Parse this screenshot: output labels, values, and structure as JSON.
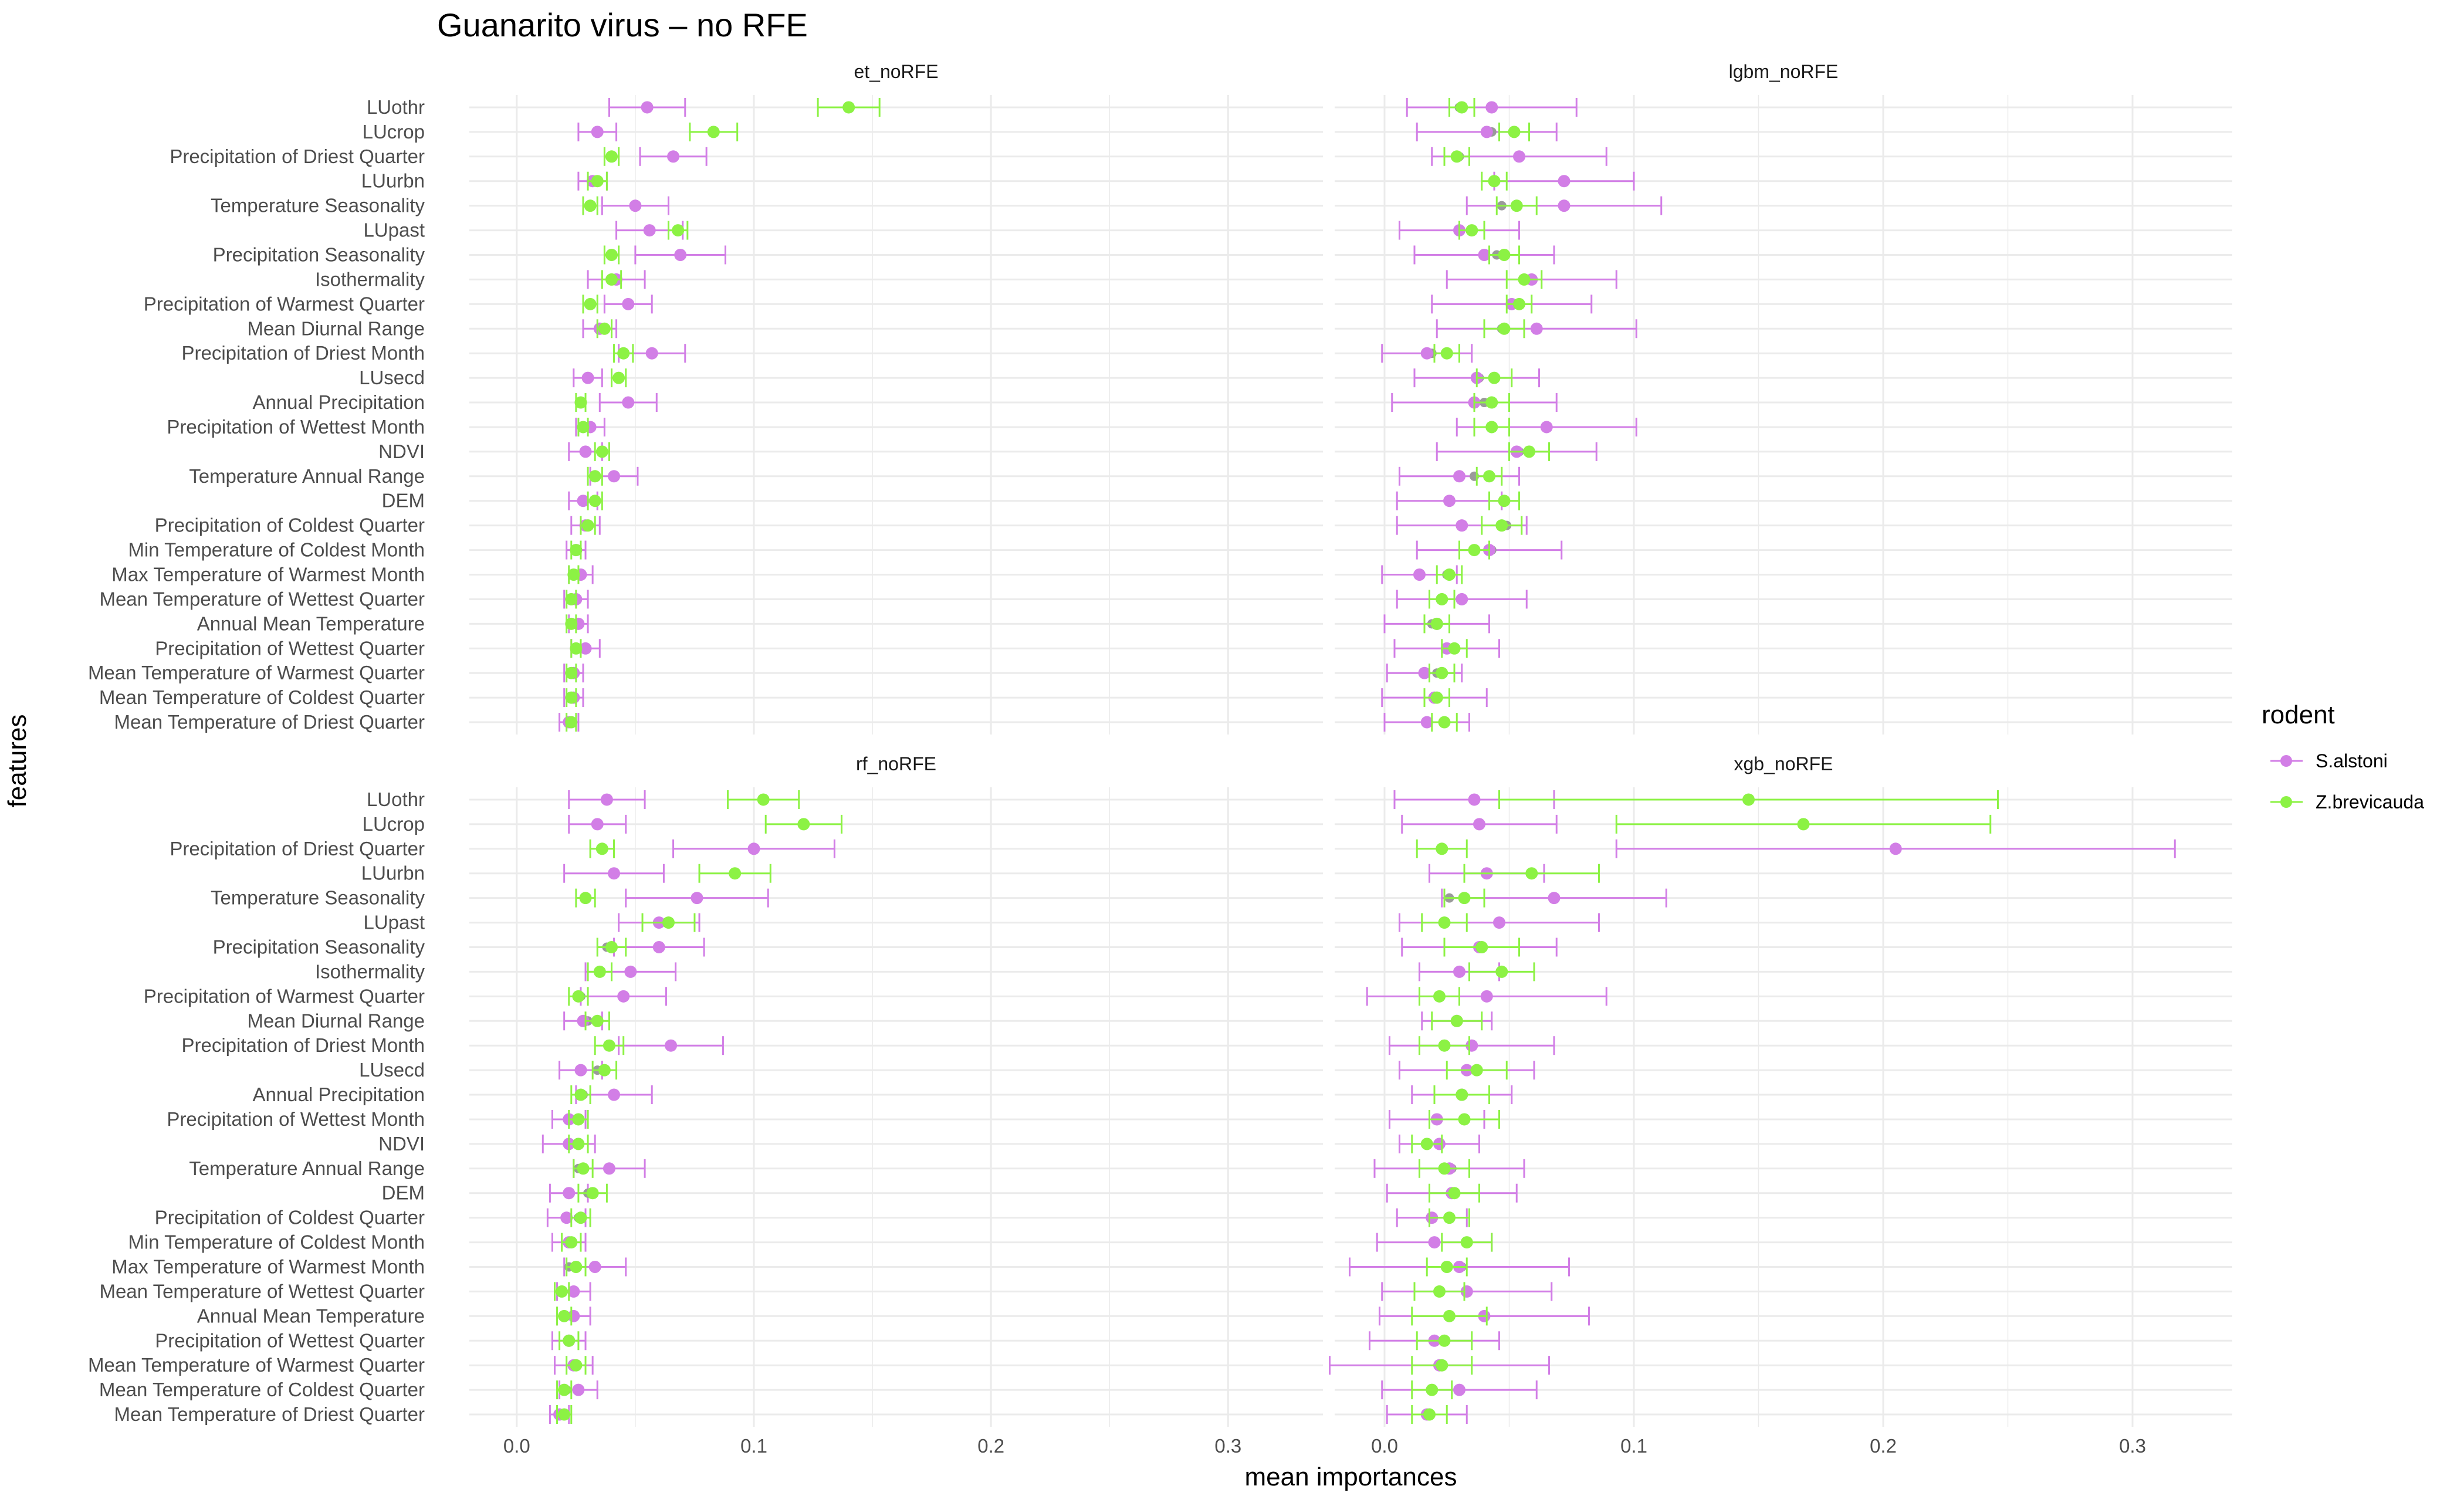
{
  "chart_data": {
    "type": "scatter",
    "subtype": "dot-with-error-bars, faceted",
    "title": "Guanarito virus – no RFE",
    "xlabel": "mean importances",
    "ylabel": "features",
    "xlim": [
      -0.02,
      0.34
    ],
    "xticks": [
      0.0,
      0.1,
      0.2,
      0.3
    ],
    "xtick_labels": [
      "0.0",
      "0.1",
      "0.2",
      "0.3"
    ],
    "grid": true,
    "legend": {
      "title": "rodent",
      "position": "right",
      "entries": [
        {
          "name": "S.alstoni",
          "color": "#d27ee6"
        },
        {
          "name": "Z.brevicauda",
          "color": "#8cf244"
        }
      ]
    },
    "features": [
      "LUothr",
      "LUcrop",
      "Precipitation of Driest Quarter",
      "LUurbn",
      "Temperature Seasonality",
      "LUpast",
      "Precipitation Seasonality",
      "Isothermality",
      "Precipitation of Warmest Quarter",
      "Mean Diurnal Range",
      "Precipitation of Driest Month",
      "LUsecd",
      "Annual Precipitation",
      "Precipitation of Wettest Month",
      "NDVI",
      "Temperature Annual Range",
      "DEM",
      "Precipitation of Coldest Quarter",
      "Min Temperature of Coldest Month",
      "Max Temperature of Warmest Month",
      "Mean Temperature of Wettest Quarter",
      "Annual Mean Temperature",
      "Precipitation of Wettest Quarter",
      "Mean Temperature of Warmest Quarter",
      "Mean Temperature of Coldest Quarter",
      "Mean Temperature of Driest Quarter"
    ],
    "panels": [
      {
        "name": "et_noRFE",
        "series": [
          {
            "name": "S.alstoni",
            "mean": [
              0.055,
              0.034,
              0.066,
              0.032,
              0.05,
              0.056,
              0.069,
              0.042,
              0.047,
              0.035,
              0.057,
              0.03,
              0.047,
              0.031,
              0.029,
              0.041,
              0.028,
              0.029,
              0.025,
              0.027,
              0.025,
              0.026,
              0.029,
              0.024,
              0.024,
              0.022
            ],
            "err": [
              0.016,
              0.008,
              0.014,
              0.006,
              0.014,
              0.014,
              0.019,
              0.012,
              0.01,
              0.007,
              0.014,
              0.006,
              0.012,
              0.006,
              0.007,
              0.01,
              0.006,
              0.006,
              0.004,
              0.005,
              0.005,
              0.004,
              0.006,
              0.004,
              0.004,
              0.004
            ]
          },
          {
            "name": "Z.brevicauda",
            "mean": [
              0.14,
              0.083,
              0.04,
              0.034,
              0.031,
              0.068,
              0.04,
              0.04,
              0.031,
              0.037,
              0.045,
              0.043,
              0.027,
              0.028,
              0.036,
              0.033,
              0.033,
              0.03,
              0.025,
              0.024,
              0.023,
              0.023,
              0.025,
              0.023,
              0.023,
              0.023
            ],
            "err": [
              0.013,
              0.01,
              0.003,
              0.004,
              0.003,
              0.004,
              0.003,
              0.004,
              0.003,
              0.003,
              0.004,
              0.003,
              0.002,
              0.002,
              0.003,
              0.003,
              0.003,
              0.003,
              0.002,
              0.002,
              0.002,
              0.002,
              0.002,
              0.002,
              0.002,
              0.002
            ]
          }
        ]
      },
      {
        "name": "lgbm_noRFE",
        "series": [
          {
            "name": "S.alstoni",
            "mean": [
              0.043,
              0.041,
              0.054,
              0.072,
              0.072,
              0.03,
              0.04,
              0.059,
              0.051,
              0.061,
              0.017,
              0.037,
              0.036,
              0.065,
              0.053,
              0.03,
              0.026,
              0.031,
              0.042,
              0.014,
              0.031,
              0.021,
              0.025,
              0.016,
              0.02,
              0.017
            ],
            "err": [
              0.034,
              0.028,
              0.035,
              0.028,
              0.039,
              0.024,
              0.028,
              0.034,
              0.032,
              0.04,
              0.018,
              0.025,
              0.033,
              0.036,
              0.032,
              0.024,
              0.021,
              0.026,
              0.029,
              0.015,
              0.026,
              0.021,
              0.021,
              0.015,
              0.021,
              0.017
            ],
            "grey_center": [
              0.03,
              0.043,
              0.03,
              0.044,
              0.047,
              0.03,
              0.045,
              0.058,
              0.054,
              0.047,
              0.019,
              0.038,
              0.04,
              0.043,
              0.054,
              0.036,
              0.048,
              0.049,
              0.043,
              0.025,
              0.023,
              0.019,
              0.025,
              0.021,
              0.02,
              0.024
            ]
          },
          {
            "name": "Z.brevicauda",
            "mean": [
              0.031,
              0.052,
              0.029,
              0.044,
              0.053,
              0.035,
              0.048,
              0.056,
              0.054,
              0.048,
              0.025,
              0.044,
              0.043,
              0.043,
              0.058,
              0.042,
              0.048,
              0.047,
              0.036,
              0.026,
              0.023,
              0.021,
              0.028,
              0.023,
              0.021,
              0.024
            ],
            "err": [
              0.005,
              0.006,
              0.005,
              0.005,
              0.008,
              0.005,
              0.006,
              0.007,
              0.005,
              0.008,
              0.005,
              0.007,
              0.007,
              0.007,
              0.008,
              0.005,
              0.006,
              0.008,
              0.006,
              0.005,
              0.005,
              0.005,
              0.005,
              0.005,
              0.005,
              0.005
            ]
          }
        ]
      },
      {
        "name": "rf_noRFE",
        "series": [
          {
            "name": "S.alstoni",
            "mean": [
              0.038,
              0.034,
              0.1,
              0.041,
              0.076,
              0.06,
              0.06,
              0.048,
              0.045,
              0.028,
              0.065,
              0.027,
              0.041,
              0.022,
              0.022,
              0.039,
              0.022,
              0.021,
              0.022,
              0.033,
              0.024,
              0.024,
              0.022,
              0.024,
              0.026,
              0.018
            ],
            "err": [
              0.016,
              0.012,
              0.034,
              0.021,
              0.03,
              0.017,
              0.019,
              0.019,
              0.018,
              0.008,
              0.022,
              0.009,
              0.016,
              0.007,
              0.011,
              0.015,
              0.008,
              0.008,
              0.007,
              0.013,
              0.007,
              0.007,
              0.007,
              0.008,
              0.008,
              0.004
            ],
            "grey_center": [
              0.038,
              0.034,
              0.1,
              0.041,
              0.076,
              0.06,
              0.038,
              0.035,
              0.027,
              0.03,
              0.039,
              0.034,
              0.028,
              0.025,
              0.026,
              0.026,
              0.03,
              0.026,
              0.023,
              0.022,
              0.019,
              0.02,
              0.022,
              0.024,
              0.021,
              0.018
            ]
          },
          {
            "name": "Z.brevicauda",
            "mean": [
              0.104,
              0.121,
              0.036,
              0.092,
              0.029,
              0.064,
              0.04,
              0.035,
              0.026,
              0.034,
              0.039,
              0.037,
              0.027,
              0.026,
              0.026,
              0.028,
              0.032,
              0.027,
              0.023,
              0.025,
              0.019,
              0.02,
              0.022,
              0.025,
              0.02,
              0.02
            ],
            "err": [
              0.015,
              0.016,
              0.005,
              0.015,
              0.004,
              0.011,
              0.006,
              0.005,
              0.004,
              0.005,
              0.006,
              0.005,
              0.004,
              0.004,
              0.004,
              0.004,
              0.006,
              0.004,
              0.004,
              0.004,
              0.003,
              0.003,
              0.004,
              0.004,
              0.003,
              0.003
            ]
          }
        ]
      },
      {
        "name": "xgb_noRFE",
        "series": [
          {
            "name": "S.alstoni",
            "mean": [
              0.036,
              0.038,
              0.205,
              0.041,
              0.068,
              0.046,
              0.038,
              0.03,
              0.041,
              0.029,
              0.035,
              0.033,
              0.031,
              0.021,
              0.022,
              0.026,
              0.027,
              0.019,
              0.02,
              0.03,
              0.033,
              0.04,
              0.02,
              0.022,
              0.03,
              0.017
            ],
            "err": [
              0.032,
              0.031,
              0.112,
              0.023,
              0.045,
              0.04,
              0.031,
              0.016,
              0.048,
              0.014,
              0.033,
              0.027,
              0.02,
              0.019,
              0.016,
              0.03,
              0.026,
              0.014,
              0.023,
              0.044,
              0.034,
              0.042,
              0.026,
              0.044,
              0.031,
              0.016
            ],
            "grey_center": [
              0.036,
              0.038,
              0.205,
              0.041,
              0.026,
              0.046,
              0.038,
              0.047,
              0.041,
              0.029,
              0.035,
              0.033,
              0.031,
              0.021,
              0.022,
              0.027,
              0.027,
              0.019,
              0.02,
              0.031,
              0.033,
              0.04,
              0.02,
              0.022,
              0.03,
              0.017
            ]
          },
          {
            "name": "Z.brevicauda",
            "mean": [
              0.146,
              0.168,
              0.023,
              0.059,
              0.032,
              0.024,
              0.039,
              0.047,
              0.022,
              0.029,
              0.024,
              0.037,
              0.031,
              0.032,
              0.017,
              0.024,
              0.028,
              0.026,
              0.033,
              0.025,
              0.022,
              0.026,
              0.024,
              0.023,
              0.019,
              0.018
            ],
            "err": [
              0.1,
              0.075,
              0.01,
              0.027,
              0.008,
              0.009,
              0.015,
              0.013,
              0.008,
              0.01,
              0.01,
              0.012,
              0.011,
              0.014,
              0.006,
              0.01,
              0.01,
              0.008,
              0.01,
              0.008,
              0.01,
              0.015,
              0.011,
              0.012,
              0.008,
              0.007
            ]
          }
        ]
      }
    ]
  }
}
